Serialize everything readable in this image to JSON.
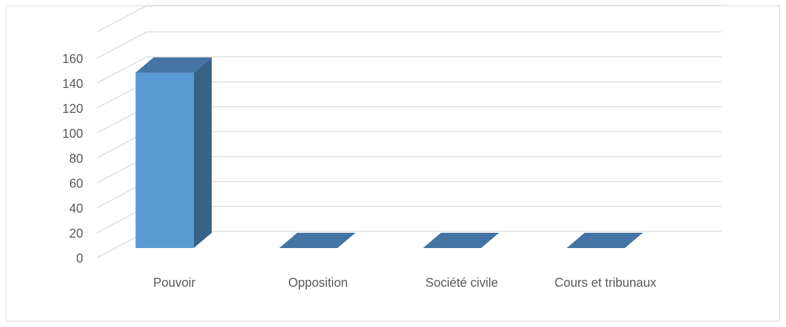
{
  "colors": {
    "bar_front": "#5b9bd5",
    "bar_side": "#376387",
    "bar_top": "#4374a3",
    "grid": "#d9d9d9",
    "text": "#595959"
  },
  "chart_data": {
    "type": "bar",
    "style": "3d-column",
    "title": "",
    "xlabel": "",
    "ylabel": "",
    "categories": [
      "Pouvoir",
      "Opposition",
      "Société civile",
      "Cours et tribunaux"
    ],
    "values": [
      150,
      0,
      0,
      0
    ],
    "ylim": [
      0,
      160
    ],
    "yticks": [
      0,
      20,
      40,
      60,
      80,
      100,
      120,
      140,
      160
    ],
    "grid": true,
    "legend": "none"
  }
}
